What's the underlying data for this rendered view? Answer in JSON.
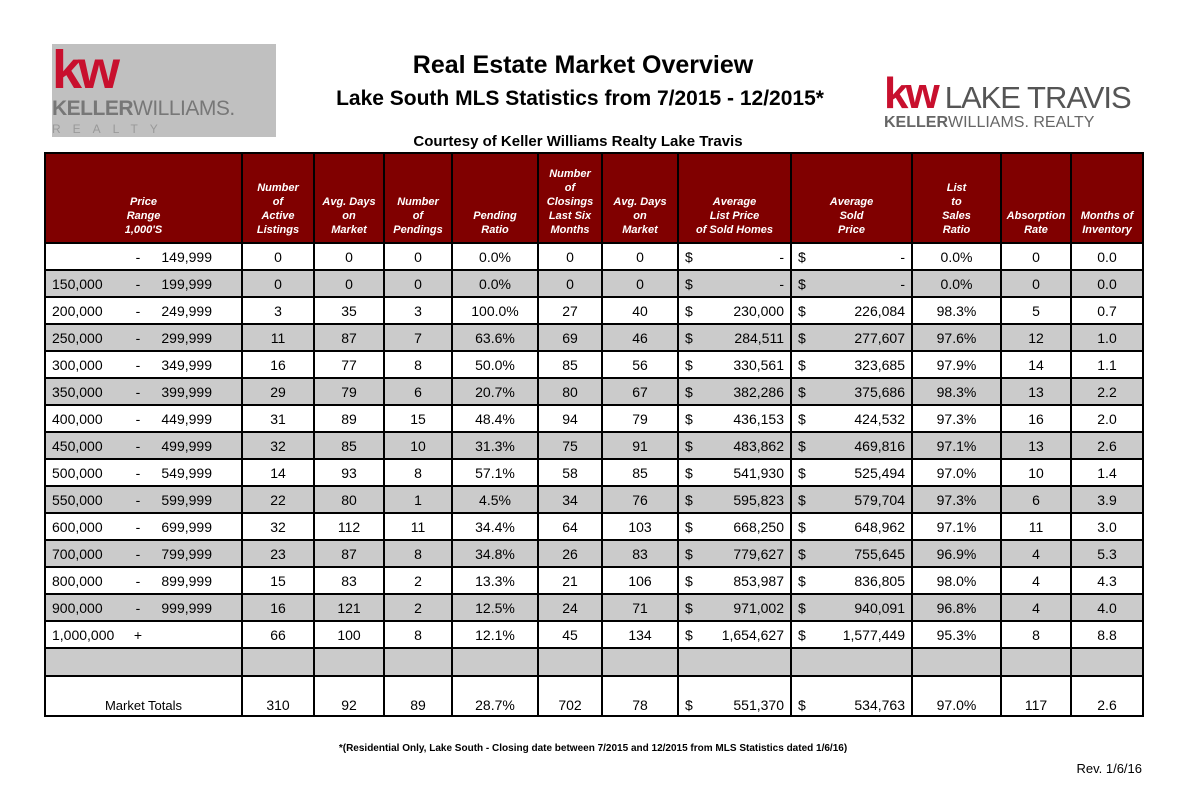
{
  "logos": {
    "left": {
      "mark": "kw",
      "name_bold": "KELLER",
      "name": "WILLIAMS.",
      "realty": "REALTY"
    },
    "right": {
      "mark": "kw",
      "name": "LAKE TRAVIS",
      "sub_bold": "KELLER",
      "sub": "WILLIAMS. REALTY"
    }
  },
  "header": {
    "title": "Real Estate Market Overview",
    "subtitle": "Lake South MLS Statistics from 7/2015 - 12/2015*",
    "courtesy": "Courtesy of Keller Williams Realty Lake Travis"
  },
  "colors": {
    "header_bg": "#800000",
    "alt_row": "#cbcbcb",
    "brand_red": "#c8102e"
  },
  "table": {
    "columns": [
      "Price\nRange\n1,000'S",
      "Number\nof\nActive\nListings",
      "Avg. Days\non\nMarket",
      "Number\nof\nPendings",
      "Pending\nRatio",
      "Number\nof\nClosings\nLast Six\nMonths",
      "Avg. Days\non\nMarket",
      "Average\nList Price\nof Sold Homes",
      "Average\nSold\nPrice",
      "List\nto\nSales\nRatio",
      "Absorption\nRate",
      "Months of\nInventory"
    ],
    "rows": [
      [
        "",
        "-",
        "149,999",
        "0",
        "0",
        "0",
        "0.0%",
        "0",
        "0",
        "-",
        "-",
        "0.0%",
        "0",
        "0.0"
      ],
      [
        "150,000",
        "-",
        "199,999",
        "0",
        "0",
        "0",
        "0.0%",
        "0",
        "0",
        "-",
        "-",
        "0.0%",
        "0",
        "0.0"
      ],
      [
        "200,000",
        "-",
        "249,999",
        "3",
        "35",
        "3",
        "100.0%",
        "27",
        "40",
        "230,000",
        "226,084",
        "98.3%",
        "5",
        "0.7"
      ],
      [
        "250,000",
        "-",
        "299,999",
        "11",
        "87",
        "7",
        "63.6%",
        "69",
        "46",
        "284,511",
        "277,607",
        "97.6%",
        "12",
        "1.0"
      ],
      [
        "300,000",
        "-",
        "349,999",
        "16",
        "77",
        "8",
        "50.0%",
        "85",
        "56",
        "330,561",
        "323,685",
        "97.9%",
        "14",
        "1.1"
      ],
      [
        "350,000",
        "-",
        "399,999",
        "29",
        "79",
        "6",
        "20.7%",
        "80",
        "67",
        "382,286",
        "375,686",
        "98.3%",
        "13",
        "2.2"
      ],
      [
        "400,000",
        "-",
        "449,999",
        "31",
        "89",
        "15",
        "48.4%",
        "94",
        "79",
        "436,153",
        "424,532",
        "97.3%",
        "16",
        "2.0"
      ],
      [
        "450,000",
        "-",
        "499,999",
        "32",
        "85",
        "10",
        "31.3%",
        "75",
        "91",
        "483,862",
        "469,816",
        "97.1%",
        "13",
        "2.6"
      ],
      [
        "500,000",
        "-",
        "549,999",
        "14",
        "93",
        "8",
        "57.1%",
        "58",
        "85",
        "541,930",
        "525,494",
        "97.0%",
        "10",
        "1.4"
      ],
      [
        "550,000",
        "-",
        "599,999",
        "22",
        "80",
        "1",
        "4.5%",
        "34",
        "76",
        "595,823",
        "579,704",
        "97.3%",
        "6",
        "3.9"
      ],
      [
        "600,000",
        "-",
        "699,999",
        "32",
        "112",
        "11",
        "34.4%",
        "64",
        "103",
        "668,250",
        "648,962",
        "97.1%",
        "11",
        "3.0"
      ],
      [
        "700,000",
        "-",
        "799,999",
        "23",
        "87",
        "8",
        "34.8%",
        "26",
        "83",
        "779,627",
        "755,645",
        "96.9%",
        "4",
        "5.3"
      ],
      [
        "800,000",
        "-",
        "899,999",
        "15",
        "83",
        "2",
        "13.3%",
        "21",
        "106",
        "853,987",
        "836,805",
        "98.0%",
        "4",
        "4.3"
      ],
      [
        "900,000",
        "-",
        "999,999",
        "16",
        "121",
        "2",
        "12.5%",
        "24",
        "71",
        "971,002",
        "940,091",
        "96.8%",
        "4",
        "4.0"
      ],
      [
        "1,000,000",
        "+",
        "",
        "66",
        "100",
        "8",
        "12.1%",
        "45",
        "134",
        "1,654,627",
        "1,577,449",
        "95.3%",
        "8",
        "8.8"
      ]
    ],
    "currency": "$",
    "totals": [
      "Market Totals",
      "310",
      "92",
      "89",
      "28.7%",
      "702",
      "78",
      "551,370",
      "534,763",
      "97.0%",
      "117",
      "2.6"
    ]
  },
  "footnote": "*(Residential Only, Lake South - Closing date between 7/2015 and 12/2015 from MLS Statistics dated 1/6/16)",
  "revision": "Rev. 1/6/16"
}
